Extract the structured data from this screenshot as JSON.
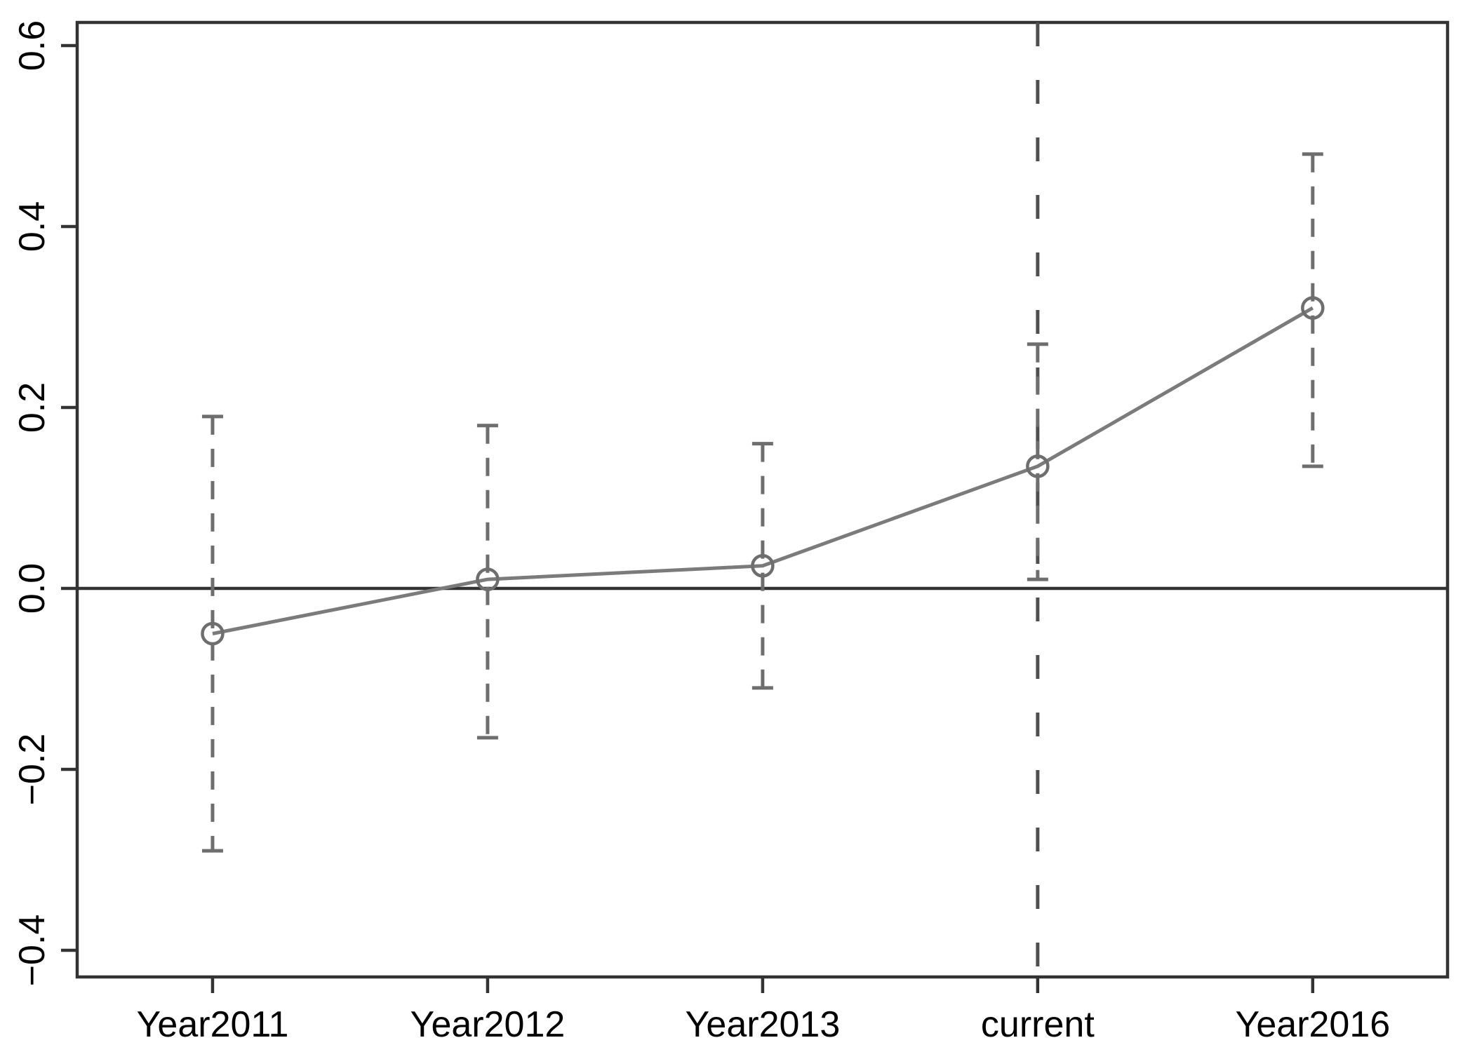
{
  "chart_data": {
    "type": "line",
    "title": "",
    "xlabel": "",
    "ylabel": "",
    "grid": false,
    "legend": "none",
    "marker": "open-circle",
    "categories": [
      "Year2011",
      "Year2012",
      "Year2013",
      "current",
      "Year2016"
    ],
    "series": [
      {
        "name": "point-estimate",
        "values": [
          -0.05,
          0.01,
          0.025,
          0.135,
          0.31
        ]
      }
    ],
    "error_bars": {
      "style": "dashed-with-caps",
      "lower": [
        -0.29,
        -0.165,
        -0.11,
        0.01,
        0.135
      ],
      "upper": [
        0.19,
        0.18,
        0.16,
        0.27,
        0.48
      ]
    },
    "reference_lines": {
      "horizontal_y": 0.0,
      "horizontal_style": "solid",
      "vertical_x_category": "current",
      "vertical_style": "dashed"
    },
    "y_ticks": [
      0.6,
      0.4,
      0.2,
      0.0,
      -0.2,
      -0.4
    ],
    "y_tick_labels": [
      "0.6",
      "0.4",
      "0.2",
      "0.0",
      "−0.2",
      "−0.4"
    ],
    "ylim": [
      -0.43,
      0.626
    ],
    "colors": {
      "axis": "#333333",
      "tick_text": "#000000",
      "data_gray": "#6e6e6e",
      "trend_gray": "#7b7b7b",
      "vline_gray": "#4f4f4f",
      "background": "#ffffff"
    }
  }
}
